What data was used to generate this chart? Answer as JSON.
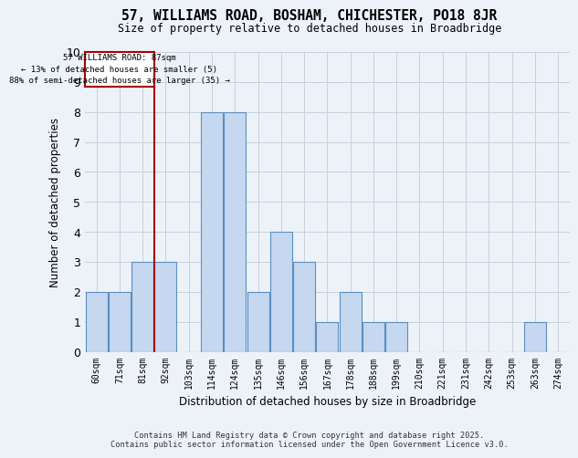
{
  "title": "57, WILLIAMS ROAD, BOSHAM, CHICHESTER, PO18 8JR",
  "subtitle": "Size of property relative to detached houses in Broadbridge",
  "xlabel": "Distribution of detached houses by size in Broadbridge",
  "ylabel": "Number of detached properties",
  "categories": [
    "60sqm",
    "71sqm",
    "81sqm",
    "92sqm",
    "103sqm",
    "114sqm",
    "124sqm",
    "135sqm",
    "146sqm",
    "156sqm",
    "167sqm",
    "178sqm",
    "188sqm",
    "199sqm",
    "210sqm",
    "221sqm",
    "231sqm",
    "242sqm",
    "253sqm",
    "263sqm",
    "274sqm"
  ],
  "values": [
    2,
    2,
    3,
    3,
    0,
    8,
    8,
    2,
    4,
    3,
    1,
    2,
    1,
    1,
    0,
    0,
    0,
    0,
    0,
    1,
    0
  ],
  "bar_color": "#c5d8f0",
  "bar_edge_color": "#5a8fc0",
  "property_line_x": 2.5,
  "annotation_text_line1": "57 WILLIAMS ROAD: 87sqm",
  "annotation_text_line2": "← 13% of detached houses are smaller (5)",
  "annotation_text_line3": "88% of semi-detached houses are larger (35) →",
  "annotation_box_color": "#aa0000",
  "ylim": [
    0,
    10
  ],
  "yticks": [
    0,
    1,
    2,
    3,
    4,
    5,
    6,
    7,
    8,
    9,
    10
  ],
  "grid_color": "#c8d0dc",
  "background_color": "#edf2f9",
  "footer_line1": "Contains HM Land Registry data © Crown copyright and database right 2025.",
  "footer_line2": "Contains public sector information licensed under the Open Government Licence v3.0."
}
